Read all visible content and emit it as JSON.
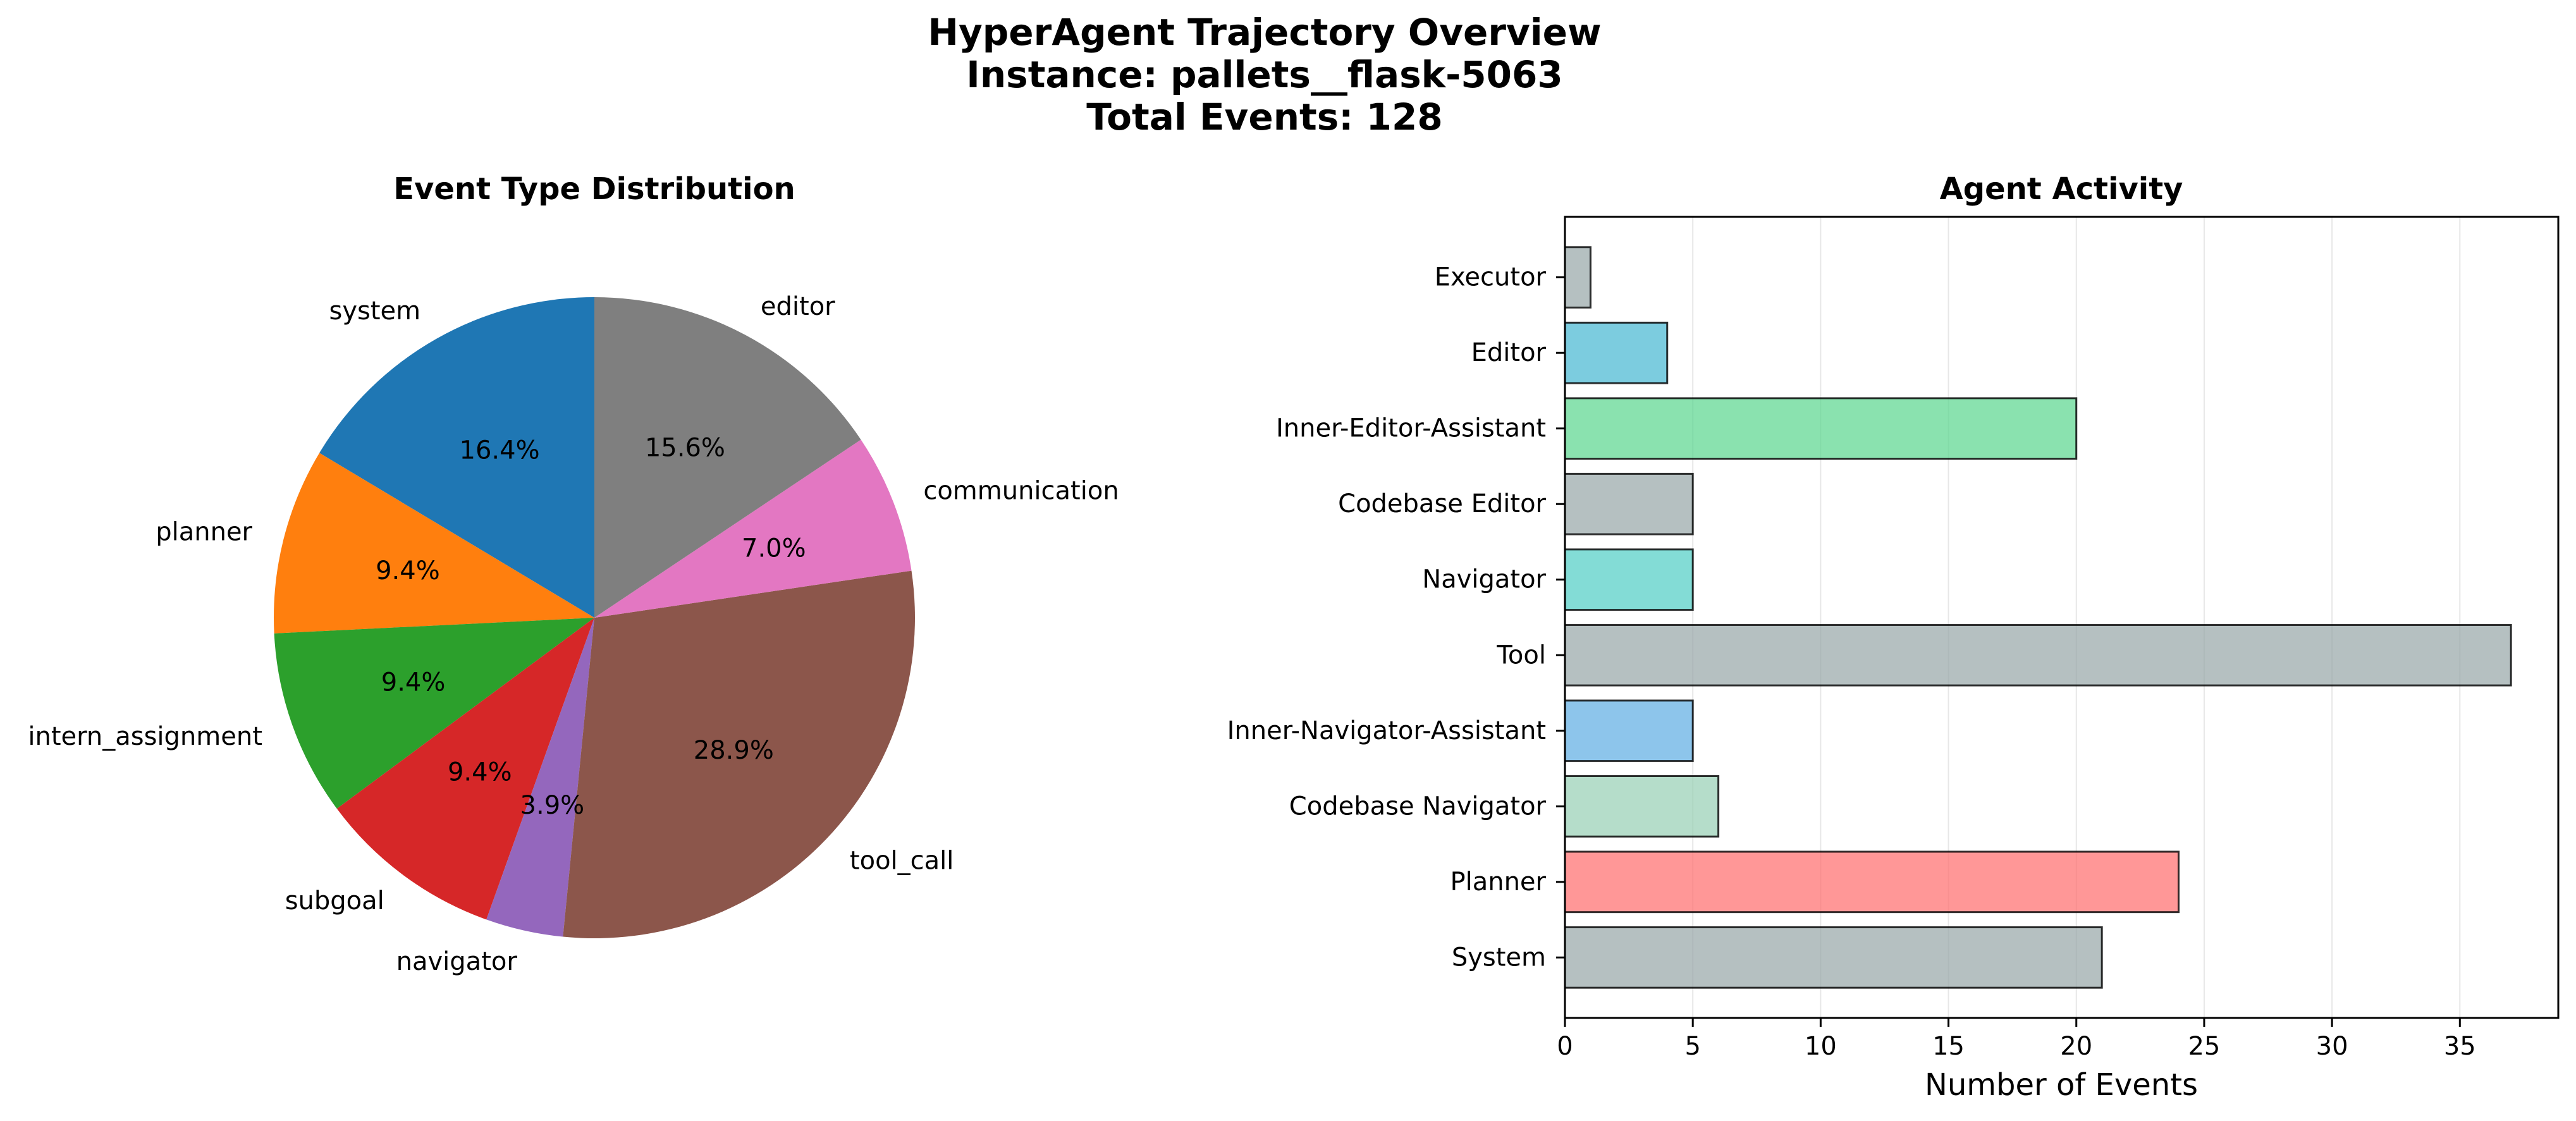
{
  "figure": {
    "title_lines": [
      "HyperAgent Trajectory Overview",
      "Instance: pallets__flask-5063",
      "Total Events: 128"
    ]
  },
  "chart_data": [
    {
      "type": "pie",
      "title": "Event Type Distribution",
      "start_angle": "top, counter-clockwise",
      "slices": [
        {
          "label": "system",
          "value": 21,
          "pct": "16.4%",
          "color": "#1f77b4"
        },
        {
          "label": "planner",
          "value": 12,
          "pct": "9.4%",
          "color": "#ff7f0e"
        },
        {
          "label": "intern_assignment",
          "value": 12,
          "pct": "9.4%",
          "color": "#2ca02c"
        },
        {
          "label": "subgoal",
          "value": 12,
          "pct": "9.4%",
          "color": "#d62728"
        },
        {
          "label": "navigator",
          "value": 5,
          "pct": "3.9%",
          "color": "#9467bd"
        },
        {
          "label": "tool_call",
          "value": 37,
          "pct": "28.9%",
          "color": "#8c564b"
        },
        {
          "label": "communication",
          "value": 9,
          "pct": "7.0%",
          "color": "#e377c2"
        },
        {
          "label": "editor",
          "value": 20,
          "pct": "15.6%",
          "color": "#7f7f7f"
        }
      ]
    },
    {
      "type": "bar",
      "orientation": "horizontal",
      "title": "Agent Activity",
      "xlabel": "Number of Events",
      "ylabel": "",
      "xlim": [
        0,
        38.85
      ],
      "xticks": [
        0,
        5,
        10,
        15,
        20,
        25,
        30,
        35
      ],
      "grid": "x-axis only",
      "categories": [
        "System",
        "Planner",
        "Codebase Navigator",
        "Inner-Navigator-Assistant",
        "Tool",
        "Navigator",
        "Codebase Editor",
        "Inner-Editor-Assistant",
        "Editor",
        "Executor"
      ],
      "values": [
        21,
        24,
        6,
        5,
        37,
        5,
        5,
        20,
        4,
        1
      ],
      "colors": [
        "#95a5a6",
        "#ff6b6b",
        "#96ceb4",
        "#5dade2",
        "#95a5a6",
        "#4ecdc4",
        "#95a5a6",
        "#58d68d",
        "#45b7d1",
        "#95a5a6"
      ]
    }
  ]
}
